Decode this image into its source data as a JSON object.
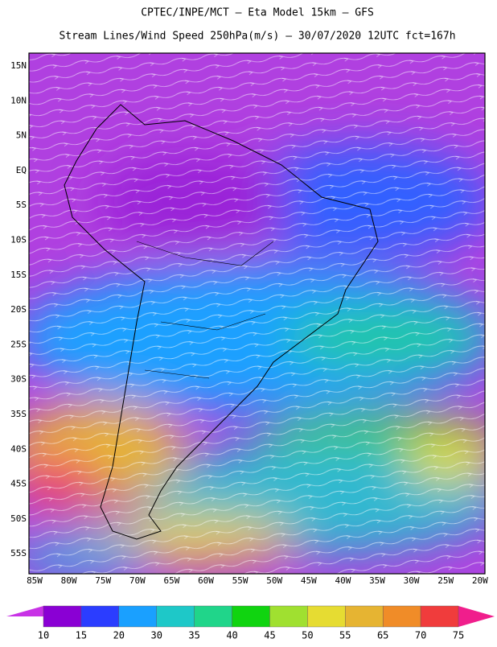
{
  "header": {
    "title": "CPTEC/INPE/MCT –  Eta Model 15km – GFS",
    "subtitle": "Stream Lines/Wind Speed 250hPa(m/s) – 30/07/2020 12UTC fct=167h"
  },
  "map": {
    "lat_labels": [
      "15N",
      "10N",
      "5N",
      "EQ",
      "5S",
      "10S",
      "15S",
      "20S",
      "25S",
      "30S",
      "35S",
      "40S",
      "45S",
      "50S",
      "55S"
    ],
    "lon_labels": [
      "85W",
      "80W",
      "75W",
      "70W",
      "65W",
      "60W",
      "55W",
      "50W",
      "45W",
      "40W",
      "35W",
      "30W",
      "25W",
      "20W"
    ]
  },
  "colorbar": {
    "ticks": [
      10,
      15,
      20,
      30,
      35,
      40,
      45,
      50,
      55,
      65,
      70,
      75
    ],
    "colors": [
      "#8a00d4",
      "#2b3dff",
      "#1aa0ff",
      "#1ec8c8",
      "#20d58a",
      "#10d410",
      "#a0e030",
      "#e6dc32",
      "#e6b432",
      "#f08c28",
      "#f03c3c"
    ],
    "under_color": "#c832e6",
    "over_color": "#f01e8c"
  }
}
